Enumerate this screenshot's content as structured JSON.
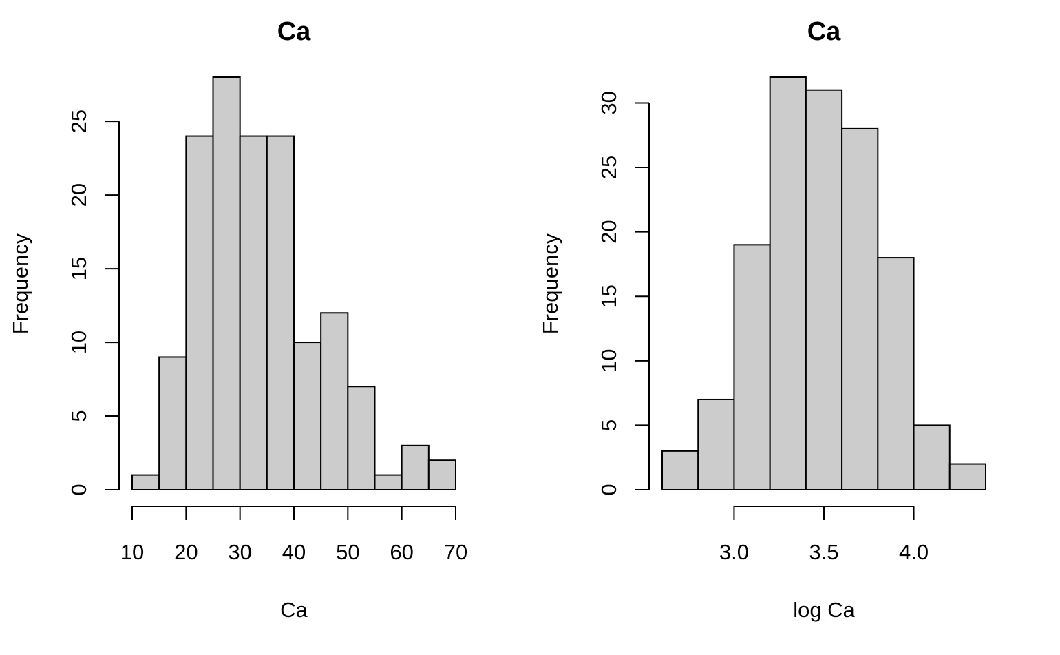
{
  "chart_data": [
    {
      "type": "bar",
      "subtype": "histogram",
      "title": "Ca",
      "xlabel": "Ca",
      "ylabel": "Frequency",
      "bin_edges": [
        10,
        15,
        20,
        25,
        30,
        35,
        40,
        45,
        50,
        55,
        60,
        65,
        70
      ],
      "values": [
        1,
        9,
        24,
        28,
        24,
        24,
        10,
        12,
        7,
        1,
        3,
        2
      ],
      "bar_color": "#cccccc",
      "xlim": [
        10,
        70
      ],
      "ylim": [
        0,
        28
      ],
      "x_ticks": [
        10,
        20,
        30,
        40,
        50,
        60,
        70
      ],
      "x_tick_labels": [
        "10",
        "20",
        "30",
        "40",
        "50",
        "60",
        "70"
      ],
      "y_ticks": [
        0,
        5,
        10,
        15,
        20,
        25
      ],
      "y_tick_labels": [
        "0",
        "5",
        "10",
        "15",
        "20",
        "25"
      ],
      "grid": false
    },
    {
      "type": "bar",
      "subtype": "histogram",
      "title": "Ca",
      "xlabel": "log Ca",
      "ylabel": "Frequency",
      "bin_edges": [
        2.6,
        2.8,
        3.0,
        3.2,
        3.4,
        3.6,
        3.8,
        4.0,
        4.2,
        4.4
      ],
      "values": [
        3,
        7,
        19,
        32,
        31,
        28,
        18,
        5,
        2
      ],
      "bar_color": "#cccccc",
      "xlim": [
        2.6,
        4.4
      ],
      "ylim": [
        0,
        32
      ],
      "x_ticks": [
        3.0,
        3.5,
        4.0
      ],
      "x_tick_labels": [
        "3.0",
        "3.5",
        "4.0"
      ],
      "y_ticks": [
        0,
        5,
        10,
        15,
        20,
        25,
        30
      ],
      "y_tick_labels": [
        "0",
        "5",
        "10",
        "15",
        "20",
        "25",
        "30"
      ],
      "grid": false
    }
  ]
}
